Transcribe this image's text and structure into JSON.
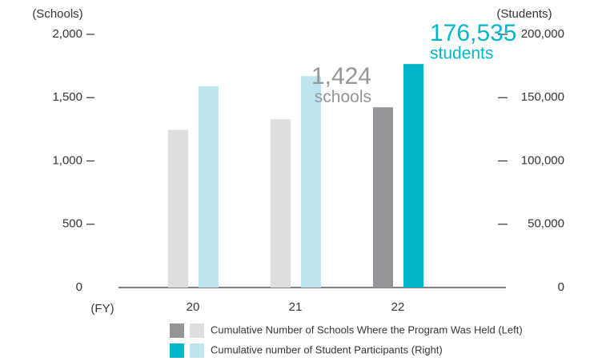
{
  "chart_data": {
    "type": "bar",
    "categories": [
      "20",
      "21",
      "22"
    ],
    "x_label": "(FY)",
    "y_label": "(Schools)",
    "y2_label": "(Students)",
    "ylim": [
      0,
      2000
    ],
    "yticks": [
      0,
      500,
      {
        "value": 1000,
        "label": "1,000"
      },
      {
        "value": 1500,
        "label": "1,500"
      },
      {
        "value": 2000,
        "label": "2,000"
      }
    ],
    "y2lim": [
      0,
      200000
    ],
    "y2ticks": [
      0,
      {
        "value": 50000,
        "label": "50,000"
      },
      {
        "value": 100000,
        "label": "100,000"
      },
      {
        "value": 150000,
        "label": "150,000"
      },
      {
        "value": 200000,
        "label": "200,000"
      }
    ],
    "series": [
      {
        "name": "Cumulative Number of Schools Where the Program Was Held (Left)",
        "colors": [
          "#dcdddf",
          "#dcdddf",
          "#939598"
        ],
        "values": [
          1245,
          1330,
          1424
        ],
        "value_labels": [
          null,
          null,
          "1,424"
        ],
        "unit_label": "schools"
      },
      {
        "name": "Cumulative number of Student Participants (Right)",
        "axis": "y2",
        "colors": [
          "#bde5ed",
          "#bde5ed",
          "#00b6c9"
        ],
        "values": [
          159000,
          167000,
          176535
        ],
        "value_labels": [
          null,
          null,
          "176,535"
        ],
        "unit_label": "students"
      }
    ]
  }
}
